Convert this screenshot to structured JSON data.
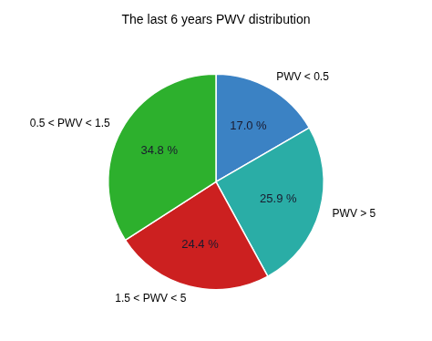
{
  "chart_data": {
    "type": "pie",
    "title": "The last 6 years PWV distribution",
    "categories": [
      "PWV < 0.5",
      "PWV > 5",
      "1.5 < PWV < 5",
      "0.5 < PWV < 1.5"
    ],
    "values": [
      17.0,
      25.9,
      24.4,
      34.8
    ],
    "value_labels": [
      "17.0 %",
      "25.9 %",
      "24.4 %",
      "34.8 %"
    ],
    "colors": [
      "#3b82c4",
      "#2aada6",
      "#cc2020",
      "#2db02d"
    ],
    "data_labels": true
  }
}
